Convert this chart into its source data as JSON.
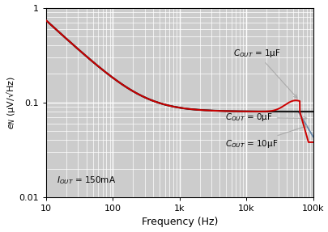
{
  "xlabel": "Frequency (Hz)",
  "ylabel": "e$_N$ (μV/√Hz)",
  "xlim": [
    10,
    100000
  ],
  "ylim": [
    0.01,
    1.0
  ],
  "color_black": "#1a1a1a",
  "color_red": "#cc0000",
  "color_blue_gray": "#6688aa",
  "bg_color": "#cccccc",
  "grid_color": "#ffffff",
  "major_grid_color": "#888888",
  "xtick_labels": [
    "10",
    "100",
    "1k",
    "10k",
    "100k"
  ],
  "xtick_vals": [
    10,
    100,
    1000,
    10000,
    100000
  ],
  "ytick_labels": [
    "0.01",
    "0.1",
    "1"
  ],
  "ytick_vals": [
    0.01,
    0.1,
    1.0
  ]
}
